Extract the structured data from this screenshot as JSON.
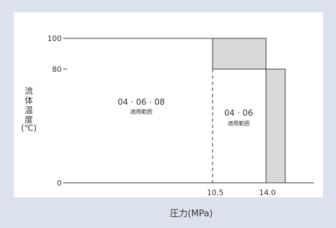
{
  "chart_data": {
    "type": "diagram",
    "ylabel_lines": [
      "流",
      "体",
      "温",
      "度",
      "(℃)"
    ],
    "xlabel": "圧力(MPa)",
    "x_ticks": [
      "10.5",
      "14.0"
    ],
    "y_ticks": [
      "100",
      "80",
      "0"
    ],
    "regions": [
      {
        "line1": "04 · 06 · 08",
        "line2": "適用範囲"
      },
      {
        "line1": "04 · 06",
        "line2": "適用範囲"
      }
    ],
    "fill_color": "#d9d9d9",
    "background": "#dde3ee",
    "plot_background": "#ffffff"
  }
}
